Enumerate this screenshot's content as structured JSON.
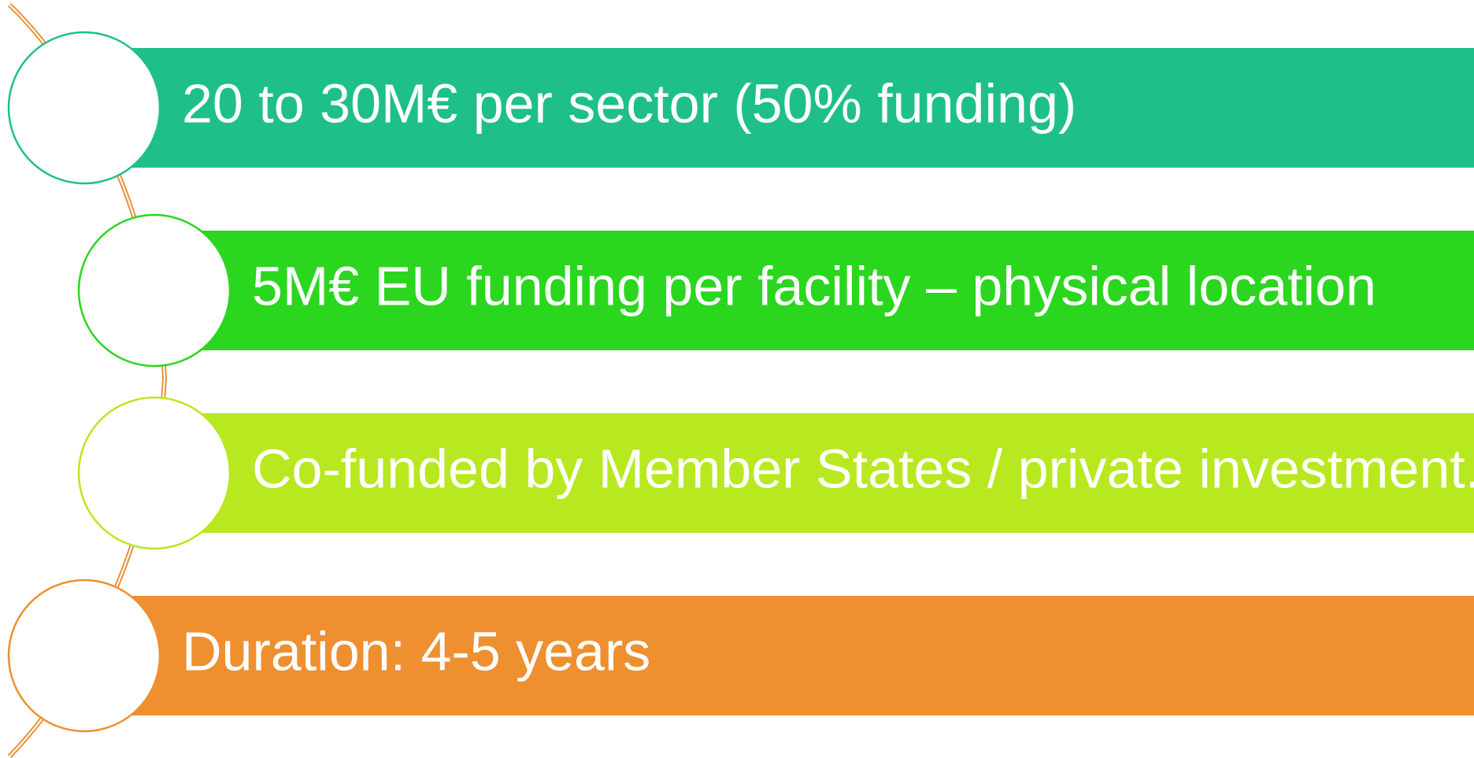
{
  "items": [
    {
      "text": "20 to 30M€ per sector (50% funding)"
    },
    {
      "text": "5M€ EU funding per facility – physical location"
    },
    {
      "text": "Co-funded by Member States / private investment."
    },
    {
      "text": "Duration: 4-5 years"
    }
  ]
}
